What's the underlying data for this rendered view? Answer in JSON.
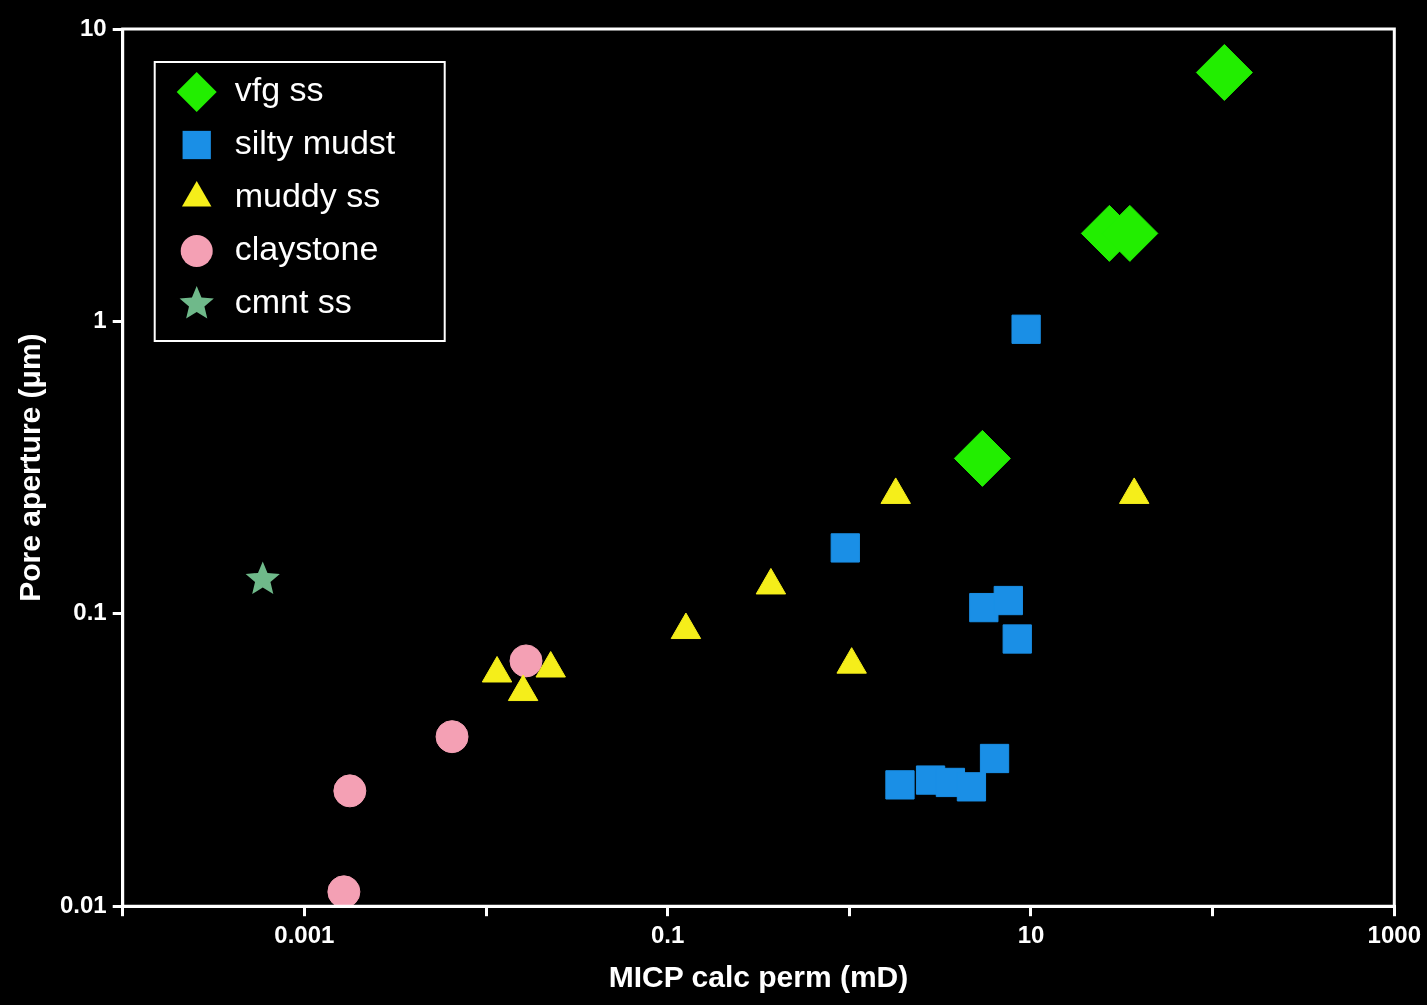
{
  "chart_data": {
    "type": "scatter",
    "xlabel": "MICP calc perm (mD)",
    "ylabel": "Pore aperture (μm)",
    "log": "xy",
    "legend": "top left",
    "xlim": [
      0.0001,
      1000
    ],
    "ylim": [
      0.01,
      10
    ],
    "xticks": [
      {
        "value": 0.0001,
        "label": null
      },
      0.001,
      {
        "value": 0.01,
        "label": null
      },
      0.1,
      {
        "value": 1,
        "label": null
      },
      10,
      {
        "value": 100,
        "label": null
      },
      1000
    ],
    "yticks": [
      0.01,
      0.1,
      1,
      10
    ],
    "series": [
      {
        "name": "vfg ss",
        "color": "#22ee00",
        "marker": "diamond",
        "x": [
          116,
          27,
          35,
          5.4
        ],
        "values": [
          7.1,
          2.0,
          2.0,
          0.34
        ]
      },
      {
        "name": "silty mudst",
        "color": "#1a8fe6",
        "marker": "square",
        "x": [
          9.4,
          0.95,
          5.5,
          7.5,
          8.4,
          6.3,
          1.9,
          2.8,
          3.6,
          4.7
        ],
        "values": [
          0.94,
          0.168,
          0.105,
          0.111,
          0.082,
          0.032,
          0.026,
          0.027,
          0.0265,
          0.0256
        ]
      },
      {
        "name": "muddy ss",
        "color": "#f5ee1a",
        "marker": "triangle",
        "x": [
          1.8,
          37,
          0.37,
          0.126,
          1.03,
          0.0115,
          0.0227,
          0.016
        ],
        "values": [
          0.255,
          0.255,
          0.125,
          0.088,
          0.067,
          0.0625,
          0.065,
          0.054
        ]
      },
      {
        "name": "claystone",
        "color": "#f4a0b4",
        "marker": "circle",
        "x": [
          0.0166,
          0.0065,
          0.00178,
          0.00165
        ],
        "values": [
          0.069,
          0.038,
          0.0248,
          0.0112
        ]
      },
      {
        "name": "cmnt ss",
        "color": "#6fb98a",
        "marker": "star",
        "x": [
          0.00059
        ],
        "values": [
          0.131
        ]
      }
    ]
  }
}
